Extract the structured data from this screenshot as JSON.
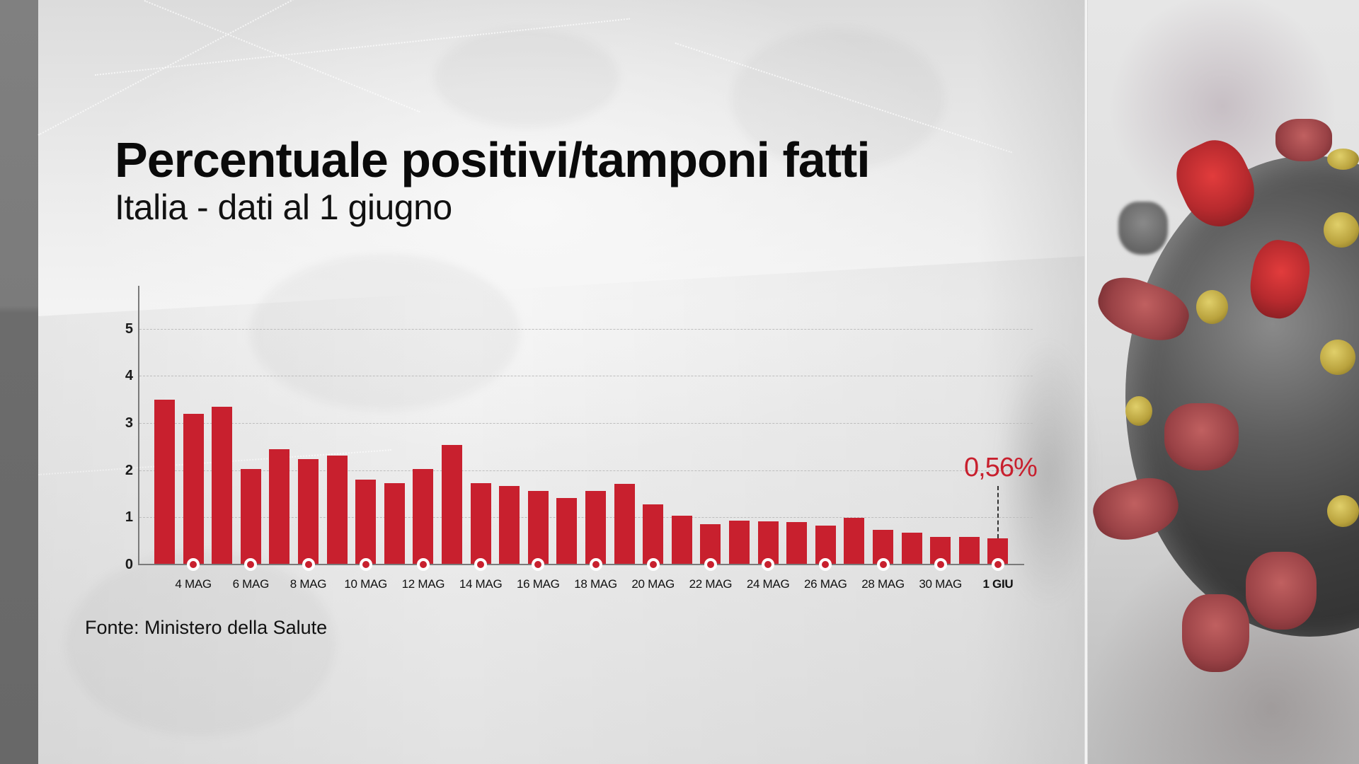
{
  "header": {
    "title": "Percentuale positivi/tamponi fatti",
    "subtitle": "Italia - dati al 1 giugno"
  },
  "footer": {
    "source": "Fonte: Ministero della Salute"
  },
  "callout": {
    "text": "0,56%",
    "target_index": 29
  },
  "colors": {
    "bar": "#c8202e",
    "callout": "#c8202e",
    "text": "#111111",
    "axis": "#7a7a7a"
  },
  "chart_data": {
    "type": "bar",
    "title": "Percentuale positivi/tamponi fatti",
    "subtitle": "Italia - dati al 1 giugno",
    "xlabel": "",
    "ylabel": "",
    "ylim": [
      0,
      5.8
    ],
    "yticks": [
      0,
      1,
      2,
      3,
      4,
      5
    ],
    "grid": true,
    "legend": null,
    "categories": [
      "3 MAG",
      "4 MAG",
      "5 MAG",
      "6 MAG",
      "7 MAG",
      "8 MAG",
      "9 MAG",
      "10 MAG",
      "11 MAG",
      "12 MAG",
      "13 MAG",
      "14 MAG",
      "15 MAG",
      "16 MAG",
      "17 MAG",
      "18 MAG",
      "19 MAG",
      "20 MAG",
      "21 MAG",
      "22 MAG",
      "23 MAG",
      "24 MAG",
      "25 MAG",
      "26 MAG",
      "27 MAG",
      "28 MAG",
      "29 MAG",
      "30 MAG",
      "31 MAG",
      "1 GIU"
    ],
    "values": [
      3.49,
      3.2,
      3.35,
      2.02,
      2.45,
      2.23,
      2.31,
      1.8,
      1.72,
      2.02,
      2.54,
      1.72,
      1.66,
      1.56,
      1.41,
      1.56,
      1.71,
      1.27,
      1.04,
      0.85,
      0.93,
      0.92,
      0.9,
      0.82,
      0.99,
      0.74,
      0.67,
      0.59,
      0.59,
      0.56
    ],
    "tick_labels": [
      {
        "index": 1,
        "label": "4 MAG"
      },
      {
        "index": 3,
        "label": "6 MAG"
      },
      {
        "index": 5,
        "label": "8 MAG"
      },
      {
        "index": 7,
        "label": "10 MAG"
      },
      {
        "index": 9,
        "label": "12 MAG"
      },
      {
        "index": 11,
        "label": "14 MAG"
      },
      {
        "index": 13,
        "label": "16 MAG"
      },
      {
        "index": 15,
        "label": "18 MAG"
      },
      {
        "index": 17,
        "label": "20 MAG"
      },
      {
        "index": 19,
        "label": "22 MAG"
      },
      {
        "index": 21,
        "label": "24 MAG"
      },
      {
        "index": 23,
        "label": "26 MAG"
      },
      {
        "index": 25,
        "label": "28 MAG"
      },
      {
        "index": 27,
        "label": "30 MAG"
      },
      {
        "index": 29,
        "label": "1 GIU",
        "bold": true
      }
    ],
    "annotations": [
      {
        "index": 29,
        "text": "0,56%"
      }
    ]
  }
}
